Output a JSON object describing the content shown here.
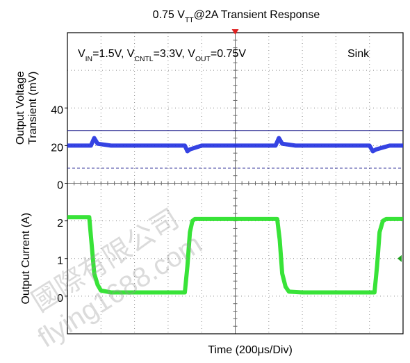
{
  "chart_data": {
    "type": "line",
    "title": [
      "0.75 V",
      "TT",
      "@2A Transient Response"
    ],
    "annotation": [
      "V",
      "IN",
      "=1.5V, V",
      "CNTL",
      "=3.3V, V",
      "OUT",
      "=0.75V"
    ],
    "mode_label": "Sink",
    "ylabel": [
      "Output Voltage",
      "Transient (mV)"
    ],
    "y2label": "Output Current (A)",
    "xlabel": "Time (200μs/Div)",
    "xlim": [
      0,
      2000
    ],
    "ylim": [
      0,
      80
    ],
    "yticks": [
      0,
      20,
      40
    ],
    "y2lim": [
      -1,
      3
    ],
    "y2ticks": [
      0,
      1,
      2
    ],
    "grid": true,
    "reference_lines": [
      {
        "value": 28,
        "style": "solid",
        "color": "#1a1a8c"
      },
      {
        "value": 8,
        "style": "dashed",
        "color": "#1a1a8c"
      }
    ],
    "series": [
      {
        "color": "#1f2fe0",
        "x": [
          0,
          140,
          160,
          180,
          260,
          700,
          715,
          730,
          800,
          1240,
          1260,
          1280,
          1360,
          1800,
          1820,
          1840,
          1920,
          2000
        ],
        "values": [
          20,
          20,
          24,
          21,
          20,
          20,
          17,
          18,
          20,
          20,
          24,
          21,
          20,
          20,
          17,
          18,
          20,
          20
        ]
      },
      {
        "color": "#22e022",
        "axis": "y2",
        "x": [
          0,
          130,
          140,
          160,
          180,
          200,
          260,
          700,
          715,
          730,
          745,
          760,
          1250,
          1265,
          1280,
          1300,
          1320,
          1400,
          1830,
          1845,
          1860,
          1880,
          1900,
          2000
        ],
        "values": [
          2.1,
          2.1,
          1.6,
          0.6,
          0.3,
          0.15,
          0.1,
          0.1,
          0.8,
          1.7,
          2.0,
          2.05,
          2.05,
          1.5,
          0.6,
          0.25,
          0.12,
          0.1,
          0.1,
          0.8,
          1.7,
          2.0,
          2.05,
          2.05
        ]
      }
    ],
    "watermark": [
      "國際有限公司",
      "flying1688.com"
    ]
  }
}
